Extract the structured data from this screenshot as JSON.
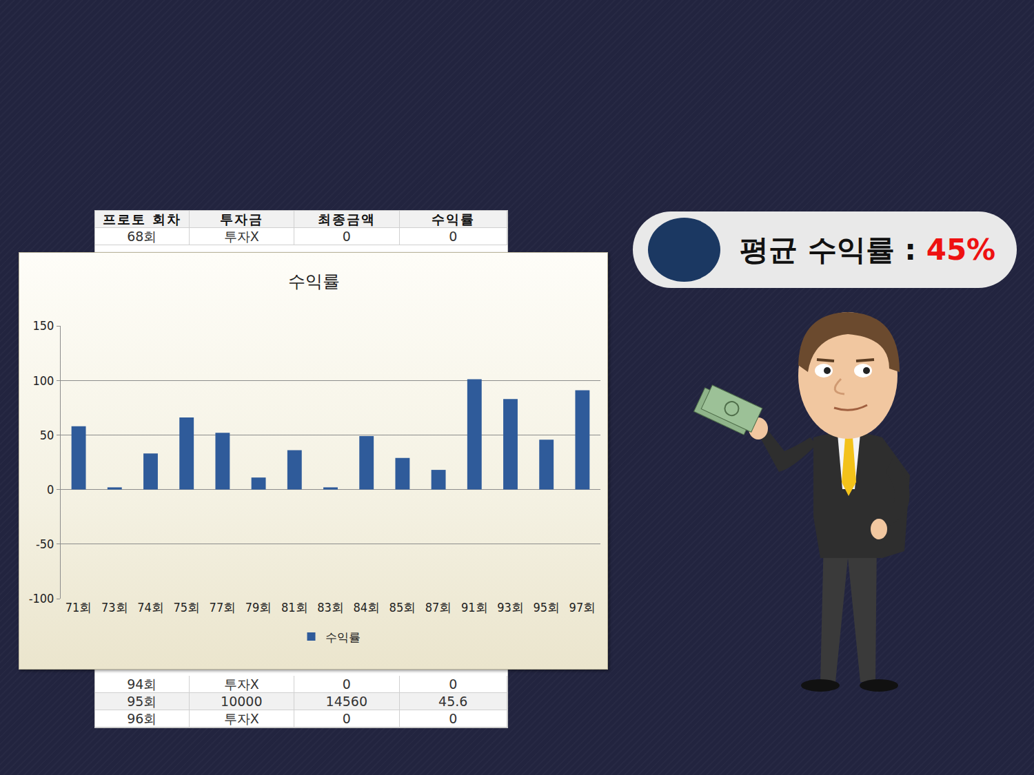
{
  "chart_data": {
    "type": "bar",
    "title": "수익률",
    "categories": [
      "71회",
      "73회",
      "74회",
      "75회",
      "77회",
      "79회",
      "81회",
      "83회",
      "84회",
      "85회",
      "87회",
      "91회",
      "93회",
      "95회",
      "97회"
    ],
    "series": [
      {
        "name": "수익률",
        "color": "#2f5b9a",
        "values": [
          58,
          2,
          33,
          66,
          52,
          11,
          36,
          2,
          49,
          29,
          18,
          101,
          83,
          45.6,
          91
        ]
      }
    ],
    "ylim": [
      -100,
      150
    ],
    "yticks": [
      -100,
      -50,
      0,
      50,
      100,
      150
    ],
    "grid": true,
    "legend": "bottom"
  },
  "table": {
    "header": [
      "프로토 회차",
      "투자금",
      "최종금액",
      "수익률"
    ],
    "rows": [
      [
        "68회",
        "투자X",
        "0",
        "0"
      ],
      [
        "94회",
        "투자X",
        "0",
        "0"
      ],
      [
        "95회",
        "10000",
        "14560",
        "45.6"
      ],
      [
        "96회",
        "투자X",
        "0",
        "0"
      ]
    ]
  },
  "badge": {
    "label": "평균 수익률 :",
    "value": "45%"
  }
}
